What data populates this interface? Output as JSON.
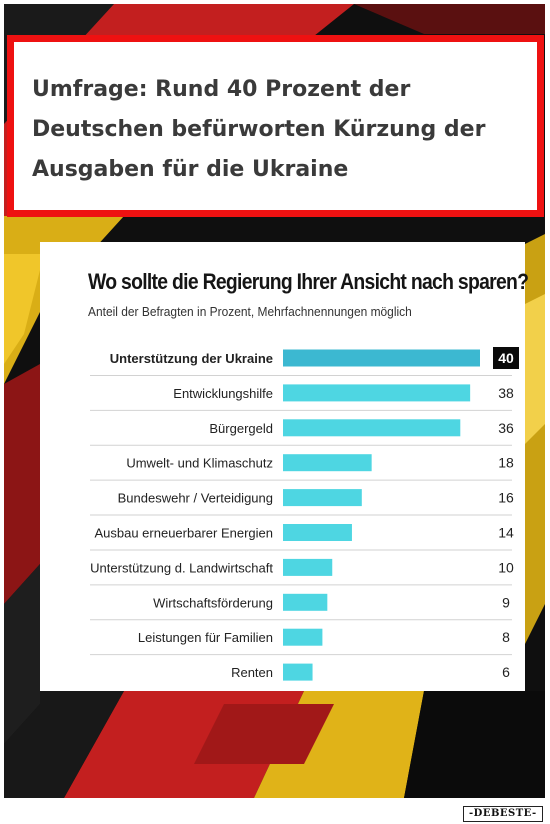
{
  "headline": "Umfrage: Rund 40 Prozent der Deutschen befürworten Kürzung der Ausgaben für die Ukraine",
  "watermark": "-DEBESTE-",
  "colors": {
    "bar": "#4ed6e2",
    "bar_highlight": "#3cb8d1",
    "headline_border": "#ee1111",
    "flag_black": "#141414",
    "flag_red": "#c31f1f",
    "flag_gold": "#e1b71a"
  },
  "chart_data": {
    "type": "bar",
    "orientation": "horizontal",
    "title": "Wo sollte die Regierung Ihrer Ansicht nach sparen?",
    "subtitle": "Anteil der Befragten in Prozent, Mehrfachnennungen möglich",
    "categories": [
      "Unterstützung der Ukraine",
      "Entwicklungshilfe",
      "Bürgergeld",
      "Umwelt- und Klimaschutz",
      "Bundeswehr / Verteidigung",
      "Ausbau erneuerbarer Energien",
      "Unterstützung d. Landwirtschaft",
      "Wirtschaftsförderung",
      "Leistungen für Familien",
      "Renten"
    ],
    "values": [
      40,
      38,
      36,
      18,
      16,
      14,
      10,
      9,
      8,
      6
    ],
    "highlight_index": 0,
    "xlim": [
      0,
      40
    ],
    "grid": false,
    "legend": "none"
  }
}
